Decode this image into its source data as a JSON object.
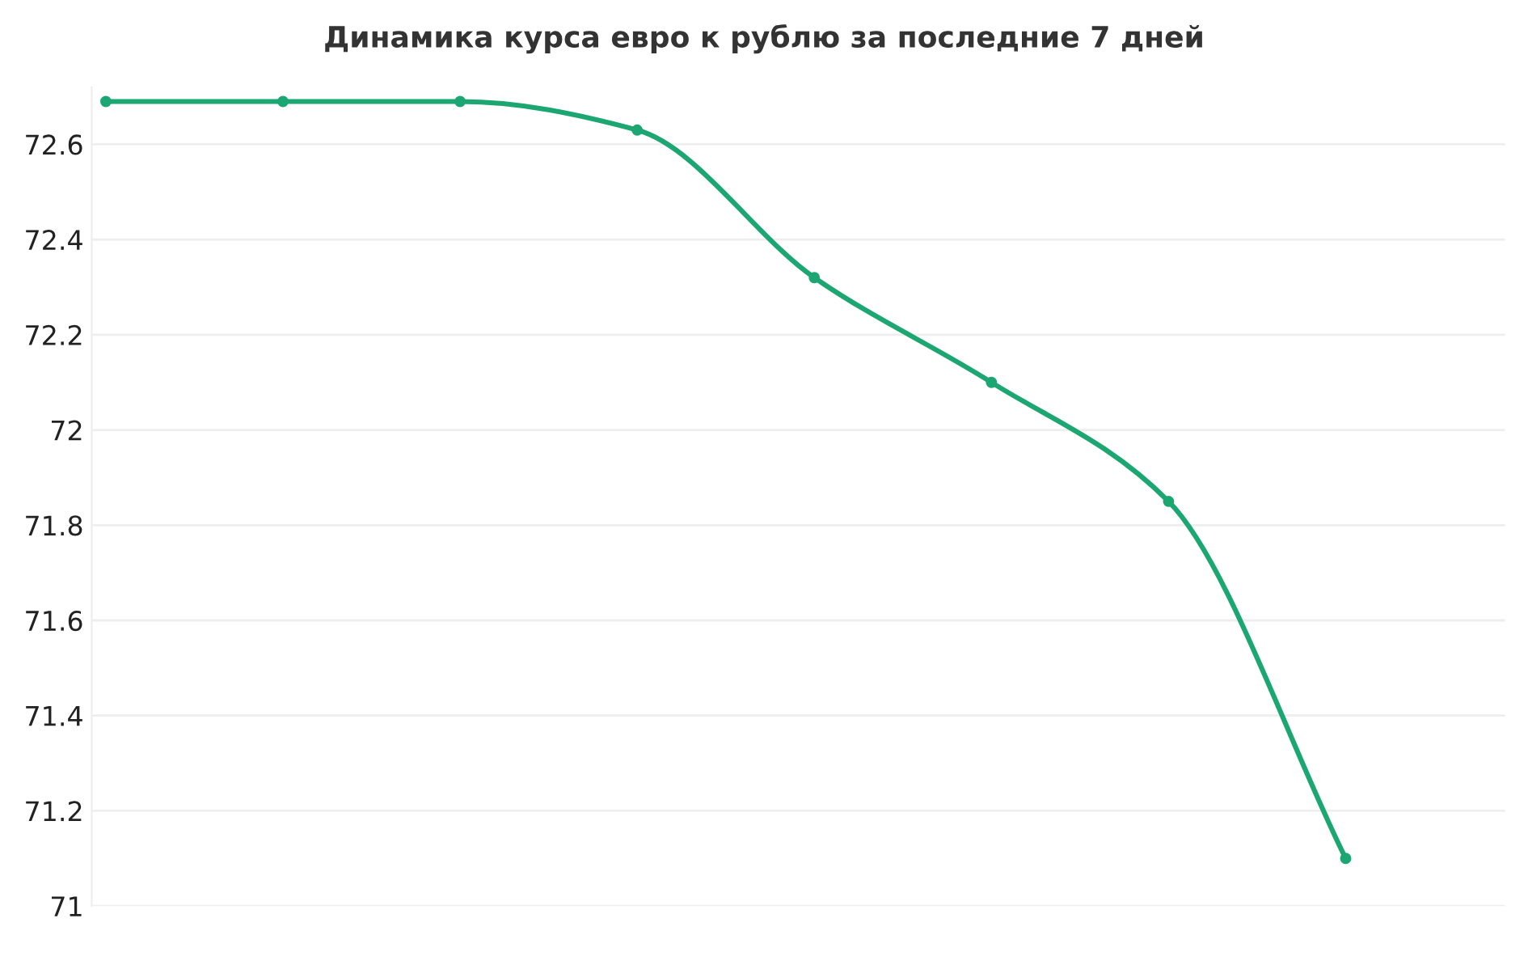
{
  "chart_data": {
    "type": "line",
    "title": "Динамика курса евро к рублю за последние 7 дней",
    "categories": [
      null,
      null,
      null,
      null,
      null,
      null,
      null,
      null
    ],
    "series": [
      {
        "color": "#1ba672",
        "values": [
          72.69,
          72.69,
          72.69,
          72.63,
          72.32,
          72.1,
          71.85,
          71.1
        ]
      }
    ],
    "ylim": [
      71,
      72.72
    ],
    "yticks": [
      71,
      71.2,
      71.4,
      71.6,
      71.8,
      72,
      72.2,
      72.4,
      72.6
    ],
    "grid": "y",
    "marker": "circle",
    "line_style": "solid",
    "legend": false
  }
}
